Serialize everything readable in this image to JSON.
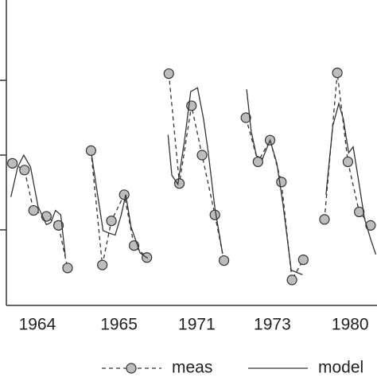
{
  "chart_data": {
    "type": "line",
    "xlim": [
      0,
      4.9
    ],
    "ylim": [
      0,
      4
    ],
    "xticks": [
      {
        "value": 0.41,
        "label": "1964"
      },
      {
        "value": 1.49,
        "label": "1965"
      },
      {
        "value": 2.52,
        "label": "1971"
      },
      {
        "value": 3.52,
        "label": "1973"
      },
      {
        "value": 4.55,
        "label": "1980"
      }
    ],
    "yticks": [
      1,
      2,
      3
    ],
    "series": [
      {
        "name": "meas",
        "color": "#333333",
        "marker": "circle",
        "dash": true,
        "x": [
          0.08,
          0.24,
          0.36,
          0.53,
          0.69,
          0.81,
          null,
          1.12,
          1.27,
          1.39,
          1.56,
          1.69,
          1.86,
          null,
          2.15,
          2.29,
          2.45,
          2.59,
          2.76,
          2.88,
          null,
          3.17,
          3.33,
          3.49,
          3.64,
          3.78,
          3.93,
          null,
          4.21,
          4.38,
          4.52,
          4.67,
          4.82
        ],
        "values": [
          1.89,
          1.8,
          1.26,
          1.18,
          1.06,
          0.49,
          null,
          2.06,
          0.53,
          1.12,
          1.47,
          0.79,
          0.63,
          null,
          3.09,
          1.62,
          2.66,
          2.0,
          1.2,
          0.59,
          null,
          2.5,
          1.91,
          2.2,
          1.64,
          0.33,
          0.6,
          null,
          1.14,
          3.1,
          1.91,
          1.24,
          1.06
        ]
      },
      {
        "name": "model",
        "color": "#333333",
        "marker": "none",
        "dash": false,
        "x": [
          0.06,
          0.15,
          0.23,
          0.32,
          0.42,
          0.53,
          0.59,
          0.65,
          0.72,
          0.78,
          null,
          1.13,
          1.2,
          1.28,
          1.35,
          1.44,
          1.52,
          1.58,
          1.65,
          1.77,
          1.87,
          null,
          2.14,
          2.19,
          2.27,
          2.36,
          2.44,
          2.53,
          2.61,
          2.67,
          2.76,
          2.86,
          null,
          3.18,
          3.24,
          3.31,
          3.39,
          3.49,
          3.58,
          3.66,
          3.77,
          3.92,
          null,
          4.23,
          4.32,
          4.4,
          4.46,
          4.53,
          4.59,
          4.65,
          4.74,
          4.82,
          4.89
        ],
        "values": [
          1.44,
          1.84,
          2.0,
          1.84,
          1.31,
          1.07,
          1.1,
          1.26,
          1.2,
          0.65,
          null,
          1.99,
          1.52,
          0.99,
          0.96,
          0.93,
          1.2,
          1.47,
          1.04,
          0.69,
          0.62,
          null,
          2.27,
          1.73,
          1.61,
          2.21,
          2.85,
          2.9,
          2.48,
          2.05,
          1.29,
          0.69,
          null,
          2.88,
          2.32,
          1.99,
          1.95,
          2.2,
          1.89,
          1.35,
          0.46,
          0.4,
          null,
          1.47,
          2.39,
          2.69,
          2.48,
          2.03,
          2.11,
          1.73,
          1.15,
          0.88,
          0.67
        ]
      }
    ]
  }
}
